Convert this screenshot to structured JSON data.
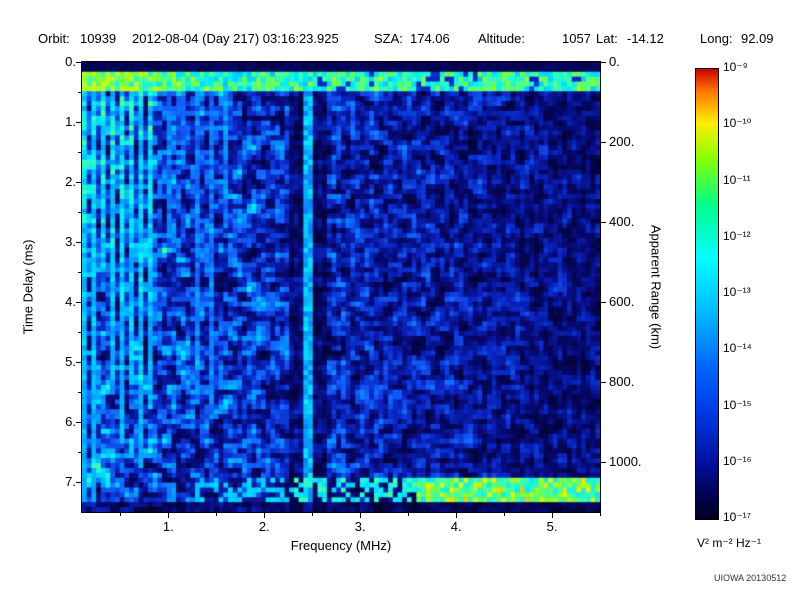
{
  "header": {
    "orbit_label": "Orbit:",
    "orbit_value": "10939",
    "datetime_value": "2012-08-04 (Day 217) 03:16:23.925",
    "sza_label": "SZA:",
    "sza_value": "174.06",
    "altitude_label": "Altitude:",
    "altitude_value": "1057",
    "lat_label": "Lat:",
    "lat_value": "-14.12",
    "long_label": "Long:",
    "long_value": "92.09"
  },
  "footer": {
    "credit": "UIOWA 20130512"
  },
  "chart_data": {
    "type": "heatmap",
    "subtype": "radar-sounder-ionogram-spectrogram",
    "xlabel": "Frequency (MHz)",
    "ylabel_left": "Time Delay (ms)",
    "ylabel_right": "Apparent Range (km)",
    "x_range_mhz": [
      0.1,
      5.5
    ],
    "y_range_ms": [
      0,
      7.5
    ],
    "right_axis_km_per_ms": 150,
    "x_tick_values": [
      1,
      2,
      3,
      4,
      5
    ],
    "x_ticks": [
      "1.",
      "2.",
      "3.",
      "4.",
      "5."
    ],
    "y_tick_values_left": [
      0,
      1,
      2,
      3,
      4,
      5,
      6,
      7
    ],
    "y_ticks_left": [
      "0.",
      "1.",
      "2.",
      "3.",
      "4.",
      "5.",
      "6.",
      "7."
    ],
    "y_tick_values_right": [
      0,
      200,
      400,
      600,
      800,
      1000
    ],
    "y_ticks_right": [
      "0.",
      "200.",
      "400.",
      "600.",
      "800.",
      "1000."
    ],
    "plot_background": "#000000",
    "colorbar": {
      "unit": "V² m⁻² Hz⁻¹",
      "tick_labels": [
        "10⁻⁹",
        "10⁻¹⁰",
        "10⁻¹¹",
        "10⁻¹²",
        "10⁻¹³",
        "10⁻¹⁴",
        "10⁻¹⁵",
        "10⁻¹⁶",
        "10⁻¹⁷"
      ],
      "max_exp": -9,
      "min_exp": -17,
      "gradient_stops": [
        {
          "color": "#cc0000",
          "pos": 0
        },
        {
          "color": "#ff7700",
          "pos": 5
        },
        {
          "color": "#ffee00",
          "pos": 12
        },
        {
          "color": "#88ff00",
          "pos": 20
        },
        {
          "color": "#00ff88",
          "pos": 30
        },
        {
          "color": "#00ffff",
          "pos": 42
        },
        {
          "color": "#00bbff",
          "pos": 54
        },
        {
          "color": "#0066ff",
          "pos": 66
        },
        {
          "color": "#0033dd",
          "pos": 78
        },
        {
          "color": "#000f99",
          "pos": 88
        },
        {
          "color": "#000044",
          "pos": 96
        },
        {
          "color": "#000022",
          "pos": 100
        }
      ]
    },
    "features": [
      {
        "name": "dark-leading-edge",
        "time_delay_ms": [
          0.0,
          0.2
        ],
        "freq_mhz": [
          0.1,
          5.5
        ],
        "level": "near noise floor ~1e-17"
      },
      {
        "name": "ionospheric-echo-band",
        "time_delay_ms": [
          0.2,
          0.48
        ],
        "freq_mhz": [
          0.1,
          5.5
        ],
        "level": "strong ~1e-12 to 1e-10, brightest (green/yellow) below 1.5 MHz, dashed above 2.5 MHz"
      },
      {
        "name": "plasma-oscillation-harmonic-stripes",
        "freq_mhz": [
          0.1,
          0.9
        ],
        "time_delay_ms": [
          0,
          7.5
        ],
        "pattern": "bright cyan/green vertical lines, fading with depth"
      },
      {
        "name": "weaker-vertical-stripes",
        "freq_mhz": [
          0.9,
          1.7
        ],
        "time_delay_ms": [
          0,
          5
        ],
        "pattern": "dimmer blue-cyan vertical lines"
      },
      {
        "name": "interference-line",
        "freq_mhz": [
          2.42,
          2.48
        ],
        "time_delay_ms": [
          0,
          7.5
        ],
        "pattern": "narrow cyan vertical line with dark sleeve ~2.3-2.6 MHz"
      },
      {
        "name": "surface-reflection-line",
        "time_delay_ms": [
          7.0,
          7.3
        ],
        "freq_mhz": [
          3.6,
          5.5
        ],
        "level": "bright cyan/green horizontal line, patchy dashes down to ~2.3 MHz"
      },
      {
        "name": "background-speckle",
        "level": "~1e-16 blue blobs on black, denser below 2 MHz, sparser toward 5.5 MHz"
      }
    ],
    "noise_seed": 20130512
  }
}
